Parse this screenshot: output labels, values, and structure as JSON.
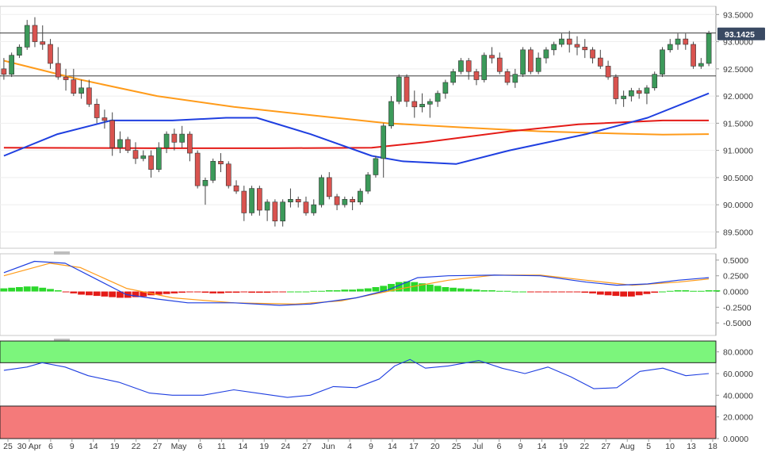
{
  "chart_data": [
    {
      "type": "candlestick",
      "current_price": "93.1425",
      "ylim": [
        89.2,
        93.65
      ],
      "y_ticks": [
        "93.5000",
        "93.0000",
        "92.5000",
        "92.0000",
        "91.5000",
        "91.0000",
        "90.5000",
        "90.0000",
        "89.5000"
      ],
      "x_ticks": [
        "25",
        "30 Apr",
        "6",
        "9",
        "14",
        "19",
        "22",
        "27",
        "May",
        "6",
        "11",
        "14",
        "19",
        "24",
        "27",
        "Jun",
        "4",
        "9",
        "14",
        "17",
        "20",
        "25",
        "Jul",
        "6",
        "9",
        "14",
        "19",
        "22",
        "27",
        "Aug",
        "5",
        "10",
        "13",
        "18"
      ],
      "horizontal_lines": [
        93.16,
        92.37
      ],
      "colors": {
        "up": "#3c9a5a",
        "down": "#d9534f",
        "sma_fast": "#1f3fe0",
        "sma_mid": "#e41b17",
        "sma_slow": "#ff9b1a",
        "price_tag": "#3a4a63"
      },
      "candles": [
        [
          92.5,
          92.7,
          92.3,
          92.4
        ],
        [
          92.4,
          92.8,
          92.35,
          92.75
        ],
        [
          92.75,
          92.95,
          92.7,
          92.9
        ],
        [
          92.9,
          93.4,
          92.85,
          93.3
        ],
        [
          93.3,
          93.45,
          92.9,
          93.0
        ],
        [
          93.0,
          93.3,
          92.85,
          92.95
        ],
        [
          92.95,
          93.05,
          92.5,
          92.6
        ],
        [
          92.6,
          92.9,
          92.3,
          92.35
        ],
        [
          92.35,
          92.5,
          92.1,
          92.3
        ],
        [
          92.3,
          92.5,
          92.0,
          92.05
        ],
        [
          92.05,
          92.3,
          91.95,
          92.15
        ],
        [
          92.15,
          92.3,
          91.8,
          91.85
        ],
        [
          91.85,
          91.95,
          91.5,
          91.6
        ],
        [
          91.6,
          91.75,
          91.4,
          91.55
        ],
        [
          91.55,
          91.7,
          90.9,
          91.05
        ],
        [
          91.05,
          91.35,
          90.95,
          91.2
        ],
        [
          91.2,
          91.25,
          90.95,
          91.0
        ],
        [
          91.0,
          91.15,
          90.75,
          90.85
        ],
        [
          90.85,
          91.0,
          90.8,
          90.9
        ],
        [
          90.9,
          91.0,
          90.5,
          90.65
        ],
        [
          90.65,
          91.15,
          90.6,
          91.05
        ],
        [
          91.05,
          91.35,
          90.95,
          91.3
        ],
        [
          91.3,
          91.4,
          91.0,
          91.15
        ],
        [
          91.15,
          91.45,
          91.05,
          91.3
        ],
        [
          91.3,
          91.35,
          90.8,
          90.95
        ],
        [
          90.95,
          91.0,
          90.3,
          90.35
        ],
        [
          90.35,
          90.5,
          90.0,
          90.45
        ],
        [
          90.45,
          90.85,
          90.4,
          90.8
        ],
        [
          90.8,
          90.95,
          90.6,
          90.75
        ],
        [
          90.75,
          90.8,
          90.3,
          90.35
        ],
        [
          90.35,
          90.45,
          90.2,
          90.25
        ],
        [
          90.25,
          90.35,
          89.7,
          89.85
        ],
        [
          89.85,
          90.35,
          89.8,
          90.3
        ],
        [
          90.3,
          90.35,
          89.8,
          89.9
        ],
        [
          89.9,
          90.1,
          89.7,
          90.05
        ],
        [
          90.05,
          90.1,
          89.6,
          89.7
        ],
        [
          89.7,
          90.1,
          89.6,
          90.05
        ],
        [
          90.05,
          90.3,
          89.95,
          90.1
        ],
        [
          90.1,
          90.15,
          89.95,
          90.05
        ],
        [
          90.05,
          90.15,
          89.8,
          89.85
        ],
        [
          89.85,
          90.1,
          89.8,
          90.0
        ],
        [
          90.0,
          90.55,
          89.95,
          90.5
        ],
        [
          90.5,
          90.6,
          90.1,
          90.15
        ],
        [
          90.15,
          90.2,
          89.9,
          90.0
        ],
        [
          90.0,
          90.15,
          89.95,
          90.1
        ],
        [
          90.1,
          90.15,
          89.9,
          90.05
        ],
        [
          90.05,
          90.3,
          90.0,
          90.25
        ],
        [
          90.25,
          90.6,
          90.2,
          90.55
        ],
        [
          90.55,
          90.9,
          90.5,
          90.85
        ],
        [
          90.85,
          91.5,
          90.5,
          91.45
        ],
        [
          91.45,
          92.0,
          91.4,
          91.9
        ],
        [
          91.9,
          92.4,
          91.85,
          92.35
        ],
        [
          92.35,
          92.4,
          91.8,
          91.9
        ],
        [
          91.9,
          92.1,
          91.6,
          91.8
        ],
        [
          91.8,
          92.05,
          91.7,
          91.85
        ],
        [
          91.85,
          91.95,
          91.6,
          91.9
        ],
        [
          91.9,
          92.1,
          91.8,
          92.05
        ],
        [
          92.05,
          92.3,
          91.95,
          92.25
        ],
        [
          92.25,
          92.5,
          92.2,
          92.45
        ],
        [
          92.45,
          92.7,
          92.4,
          92.65
        ],
        [
          92.65,
          92.7,
          92.3,
          92.45
        ],
        [
          92.45,
          92.5,
          92.2,
          92.3
        ],
        [
          92.3,
          92.8,
          92.25,
          92.75
        ],
        [
          92.75,
          92.9,
          92.6,
          92.7
        ],
        [
          92.7,
          92.8,
          92.4,
          92.45
        ],
        [
          92.45,
          92.5,
          92.2,
          92.25
        ],
        [
          92.25,
          92.5,
          92.15,
          92.4
        ],
        [
          92.4,
          92.9,
          92.35,
          92.85
        ],
        [
          92.85,
          92.9,
          92.4,
          92.45
        ],
        [
          92.45,
          92.8,
          92.4,
          92.7
        ],
        [
          92.7,
          92.9,
          92.6,
          92.85
        ],
        [
          92.85,
          93.0,
          92.75,
          92.95
        ],
        [
          92.95,
          93.15,
          92.9,
          93.05
        ],
        [
          93.05,
          93.2,
          92.8,
          92.95
        ],
        [
          92.95,
          93.1,
          92.75,
          92.9
        ],
        [
          92.9,
          93.05,
          92.7,
          92.85
        ],
        [
          92.85,
          92.9,
          92.6,
          92.7
        ],
        [
          92.7,
          92.85,
          92.5,
          92.55
        ],
        [
          92.55,
          92.65,
          92.3,
          92.35
        ],
        [
          92.35,
          92.4,
          91.85,
          91.95
        ],
        [
          91.95,
          92.1,
          91.8,
          92.0
        ],
        [
          92.0,
          92.15,
          91.9,
          92.1
        ],
        [
          92.1,
          92.15,
          91.95,
          92.05
        ],
        [
          92.05,
          92.2,
          91.85,
          92.15
        ],
        [
          92.15,
          92.45,
          92.1,
          92.4
        ],
        [
          92.4,
          92.9,
          92.35,
          92.85
        ],
        [
          92.85,
          93.05,
          92.8,
          92.95
        ],
        [
          92.95,
          93.15,
          92.85,
          93.05
        ],
        [
          93.05,
          93.15,
          92.85,
          92.95
        ],
        [
          92.95,
          93.0,
          92.5,
          92.55
        ],
        [
          92.55,
          92.7,
          92.5,
          92.6
        ],
        [
          92.6,
          93.2,
          92.55,
          93.15
        ]
      ],
      "sma_fast": [
        [
          0,
          90.9
        ],
        [
          7,
          91.3
        ],
        [
          14,
          91.55
        ],
        [
          22,
          91.55
        ],
        [
          29,
          91.6
        ],
        [
          33,
          91.6
        ],
        [
          40,
          91.3
        ],
        [
          48,
          90.9
        ],
        [
          52,
          90.8
        ],
        [
          59,
          90.75
        ],
        [
          66,
          91.0
        ],
        [
          76,
          91.3
        ],
        [
          84,
          91.6
        ],
        [
          92,
          92.05
        ]
      ],
      "sma_mid": [
        [
          0,
          91.05
        ],
        [
          20,
          91.04
        ],
        [
          35,
          91.04
        ],
        [
          48,
          91.05
        ],
        [
          55,
          91.15
        ],
        [
          66,
          91.35
        ],
        [
          75,
          91.48
        ],
        [
          86,
          91.55
        ],
        [
          92,
          91.55
        ]
      ],
      "sma_slow": [
        [
          0,
          92.65
        ],
        [
          10,
          92.3
        ],
        [
          20,
          92.0
        ],
        [
          30,
          91.8
        ],
        [
          40,
          91.65
        ],
        [
          50,
          91.5
        ],
        [
          60,
          91.42
        ],
        [
          70,
          91.35
        ],
        [
          80,
          91.31
        ],
        [
          86,
          91.29
        ],
        [
          92,
          91.3
        ]
      ]
    },
    {
      "type": "macd",
      "ylim": [
        -0.7,
        0.6
      ],
      "y_ticks": [
        "0.5000",
        "0.2500",
        "0.0000",
        "-0.2500",
        "-0.5000"
      ],
      "colors": {
        "macd": "#1f3fe0",
        "signal": "#ff9b1a",
        "hist_pos": "#2bd82b",
        "hist_neg": "#e41b17"
      },
      "macd": [
        [
          0,
          0.3
        ],
        [
          4,
          0.48
        ],
        [
          8,
          0.45
        ],
        [
          12,
          0.2
        ],
        [
          16,
          -0.05
        ],
        [
          20,
          -0.12
        ],
        [
          24,
          -0.18
        ],
        [
          30,
          -0.18
        ],
        [
          36,
          -0.22
        ],
        [
          40,
          -0.2
        ],
        [
          46,
          -0.1
        ],
        [
          50,
          0.02
        ],
        [
          54,
          0.22
        ],
        [
          58,
          0.25
        ],
        [
          64,
          0.26
        ],
        [
          70,
          0.25
        ],
        [
          76,
          0.15
        ],
        [
          80,
          0.1
        ],
        [
          84,
          0.12
        ],
        [
          88,
          0.18
        ],
        [
          92,
          0.22
        ]
      ],
      "signal": [
        [
          0,
          0.25
        ],
        [
          6,
          0.45
        ],
        [
          10,
          0.38
        ],
        [
          16,
          0.05
        ],
        [
          22,
          -0.1
        ],
        [
          30,
          -0.18
        ],
        [
          38,
          -0.2
        ],
        [
          44,
          -0.15
        ],
        [
          52,
          0.05
        ],
        [
          58,
          0.18
        ],
        [
          64,
          0.26
        ],
        [
          70,
          0.26
        ],
        [
          76,
          0.18
        ],
        [
          82,
          0.1
        ],
        [
          88,
          0.15
        ],
        [
          92,
          0.2
        ]
      ],
      "histogram": [
        0.05,
        0.06,
        0.07,
        0.08,
        0.08,
        0.06,
        0.04,
        0.02,
        -0.01,
        -0.03,
        -0.05,
        -0.06,
        -0.07,
        -0.08,
        -0.09,
        -0.1,
        -0.1,
        -0.09,
        -0.08,
        -0.06,
        -0.05,
        -0.04,
        -0.03,
        -0.02,
        -0.01,
        -0.01,
        -0.02,
        -0.03,
        -0.03,
        -0.02,
        -0.02,
        -0.01,
        -0.02,
        -0.02,
        -0.02,
        -0.01,
        -0.01,
        0.0,
        0.0,
        0.0,
        0.01,
        0.01,
        0.02,
        0.02,
        0.03,
        0.03,
        0.04,
        0.05,
        0.07,
        0.09,
        0.12,
        0.15,
        0.16,
        0.15,
        0.13,
        0.11,
        0.09,
        0.07,
        0.06,
        0.05,
        0.04,
        0.03,
        0.02,
        0.02,
        0.01,
        0.01,
        0.0,
        0.0,
        -0.01,
        -0.01,
        -0.01,
        -0.01,
        -0.01,
        -0.01,
        -0.01,
        -0.02,
        -0.03,
        -0.05,
        -0.06,
        -0.07,
        -0.08,
        -0.08,
        -0.06,
        -0.04,
        -0.02,
        0.0,
        0.01,
        0.02,
        0.02,
        0.01,
        0.01,
        0.02,
        0.02
      ]
    },
    {
      "type": "rsi",
      "ylim": [
        0,
        90
      ],
      "y_ticks": [
        "80.0000",
        "60.0000",
        "40.0000",
        "20.0000",
        "0.0000"
      ],
      "zones": {
        "overbought": [
          70,
          90
        ],
        "oversold": [
          0,
          30
        ]
      },
      "colors": {
        "line": "#1f3fe0",
        "overbought": "#7cf57c",
        "oversold": "#f47a7a"
      },
      "values": [
        [
          0,
          63
        ],
        [
          3,
          66
        ],
        [
          5,
          70
        ],
        [
          8,
          66
        ],
        [
          11,
          58
        ],
        [
          15,
          52
        ],
        [
          19,
          42
        ],
        [
          22,
          40
        ],
        [
          26,
          40
        ],
        [
          30,
          45
        ],
        [
          33,
          42
        ],
        [
          37,
          38
        ],
        [
          40,
          40
        ],
        [
          43,
          48
        ],
        [
          46,
          47
        ],
        [
          49,
          55
        ],
        [
          51,
          67
        ],
        [
          53,
          73
        ],
        [
          55,
          65
        ],
        [
          58,
          67
        ],
        [
          62,
          72
        ],
        [
          65,
          65
        ],
        [
          68,
          60
        ],
        [
          71,
          66
        ],
        [
          74,
          57
        ],
        [
          77,
          46
        ],
        [
          80,
          47
        ],
        [
          83,
          62
        ],
        [
          86,
          65
        ],
        [
          89,
          58
        ],
        [
          92,
          60
        ]
      ]
    }
  ]
}
